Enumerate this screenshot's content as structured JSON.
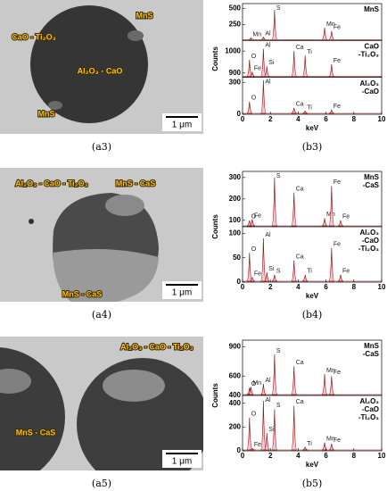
{
  "figures": [
    {
      "image": {
        "caption": "(a3)",
        "labels": [
          "MnS",
          "CaO - Ti₂O₃",
          "Al₂O₃ - CaO",
          "MnS"
        ],
        "scale": "1 μm"
      },
      "spectra": {
        "caption": "(b3)",
        "xlabel": "keV",
        "ylabel": "Counts",
        "xlim": [
          0,
          10
        ],
        "xticks": [
          0,
          2,
          4,
          6,
          8,
          10
        ],
        "panels": [
          {
            "name": [
              "MnS"
            ],
            "ylim": [
              0,
              550
            ],
            "yticks": [
              250,
              500
            ],
            "peaks": [
              {
                "label": "Mn",
                "x": 0.6,
                "h": 40
              },
              {
                "label": "Al",
                "x": 1.5,
                "h": 50
              },
              {
                "label": "S",
                "x": 2.3,
                "h": 480
              },
              {
                "label": "Mn",
                "x": 5.9,
                "h": 200
              },
              {
                "label": "Fe",
                "x": 6.4,
                "h": 150
              }
            ]
          },
          {
            "name": [
              "CaO",
              "-Ti₂O₃"
            ],
            "ylim": [
              880,
              1040
            ],
            "yticks": [
              900,
              1000
            ],
            "peaks": [
              {
                "label": "O",
                "x": 0.5,
                "h": 960
              },
              {
                "label": "Fe",
                "x": 0.7,
                "h": 905
              },
              {
                "label": "Al",
                "x": 1.5,
                "h": 1010
              },
              {
                "label": "Si",
                "x": 1.75,
                "h": 930
              },
              {
                "label": "Ca",
                "x": 3.7,
                "h": 1000
              },
              {
                "label": "Ti",
                "x": 4.5,
                "h": 980
              },
              {
                "label": "Fe",
                "x": 6.4,
                "h": 940
              }
            ]
          },
          {
            "name": [
              "Al₂O₃",
              "-CaO"
            ],
            "ylim": [
              0,
              330
            ],
            "yticks": [
              0,
              300
            ],
            "peaks": [
              {
                "label": "O",
                "x": 0.5,
                "h": 120
              },
              {
                "label": "Al",
                "x": 1.5,
                "h": 320
              },
              {
                "label": "Ca",
                "x": 3.7,
                "h": 60
              },
              {
                "label": "Ti",
                "x": 4.5,
                "h": 30
              },
              {
                "label": "Fe",
                "x": 6.4,
                "h": 40
              }
            ]
          }
        ]
      }
    },
    {
      "image": {
        "caption": "(a4)",
        "labels": [
          "Al₂O₃ - CaO - Ti₂O₃",
          "MnS - CaS",
          "MnS - CaS"
        ],
        "scale": "1 μm"
      },
      "spectra": {
        "caption": "(b4)",
        "xlabel": "keV",
        "ylabel": "Counts",
        "xlim": [
          0,
          10
        ],
        "xticks": [
          0,
          2,
          4,
          6,
          8,
          10
        ],
        "panels": [
          {
            "name": [
              "MnS",
              "-CaS"
            ],
            "ylim": [
              70,
              320
            ],
            "yticks": [
              100,
              200,
              300
            ],
            "peaks": [
              {
                "label": "O",
                "x": 0.5,
                "h": 100
              },
              {
                "label": "Fe",
                "x": 0.7,
                "h": 105
              },
              {
                "label": "S",
                "x": 2.3,
                "h": 300
              },
              {
                "label": "Ca",
                "x": 3.7,
                "h": 230
              },
              {
                "label": "Mn",
                "x": 5.9,
                "h": 110
              },
              {
                "label": "Fe",
                "x": 6.4,
                "h": 260
              },
              {
                "label": "Fe",
                "x": 7.05,
                "h": 100
              }
            ]
          },
          {
            "name": [
              "Al₂O₃",
              "-CaO",
              "-Ti₂O₃"
            ],
            "ylim": [
              0,
              110
            ],
            "yticks": [
              0,
              50,
              100
            ],
            "peaks": [
              {
                "label": "O",
                "x": 0.5,
                "h": 60
              },
              {
                "label": "Fe",
                "x": 0.7,
                "h": 10
              },
              {
                "label": "Al",
                "x": 1.5,
                "h": 90
              },
              {
                "label": "Si",
                "x": 1.75,
                "h": 20
              },
              {
                "label": "S",
                "x": 2.3,
                "h": 15
              },
              {
                "label": "Ca",
                "x": 3.7,
                "h": 45
              },
              {
                "label": "Ti",
                "x": 4.5,
                "h": 15
              },
              {
                "label": "Fe",
                "x": 6.4,
                "h": 70
              },
              {
                "label": "Fe",
                "x": 7.05,
                "h": 15
              }
            ]
          }
        ]
      }
    },
    {
      "image": {
        "caption": "(a5)",
        "labels": [
          "Al₂O₃ - CaO - Ti₂O₃",
          "MnS - CaS"
        ],
        "scale": "1 μm"
      },
      "spectra": {
        "caption": "(b5)",
        "xlabel": "keV",
        "ylabel": "Counts",
        "xlim": [
          0,
          10
        ],
        "xticks": [
          0,
          2,
          4,
          6,
          8,
          10
        ],
        "panels": [
          {
            "name": [
              "MnS",
              "-CaS"
            ],
            "ylim": [
              400,
              950
            ],
            "yticks": [
              400,
              600,
              900
            ],
            "peaks": [
              {
                "label": "O",
                "x": 0.5,
                "h": 480
              },
              {
                "label": "Mn",
                "x": 0.6,
                "h": 490
              },
              {
                "label": "Al",
                "x": 1.5,
                "h": 520
              },
              {
                "label": "S",
                "x": 2.3,
                "h": 820
              },
              {
                "label": "Ca",
                "x": 3.7,
                "h": 700
              },
              {
                "label": "Mn",
                "x": 5.9,
                "h": 620
              },
              {
                "label": "Fe",
                "x": 6.4,
                "h": 600
              }
            ]
          },
          {
            "name": [
              "Al₂O₃",
              "-CaO",
              "-Ti₂O₃"
            ],
            "ylim": [
              0,
              450
            ],
            "yticks": [
              0,
              200,
              400
            ],
            "peaks": [
              {
                "label": "O",
                "x": 0.5,
                "h": 280
              },
              {
                "label": "Fe",
                "x": 0.7,
                "h": 20
              },
              {
                "label": "Al",
                "x": 1.5,
                "h": 420
              },
              {
                "label": "Si",
                "x": 1.75,
                "h": 150
              },
              {
                "label": "S",
                "x": 2.3,
                "h": 350
              },
              {
                "label": "Ca",
                "x": 3.7,
                "h": 380
              },
              {
                "label": "Ti",
                "x": 4.5,
                "h": 30
              },
              {
                "label": "Mn",
                "x": 5.9,
                "h": 70
              },
              {
                "label": "Fe",
                "x": 6.4,
                "h": 60
              }
            ]
          }
        ]
      }
    }
  ]
}
